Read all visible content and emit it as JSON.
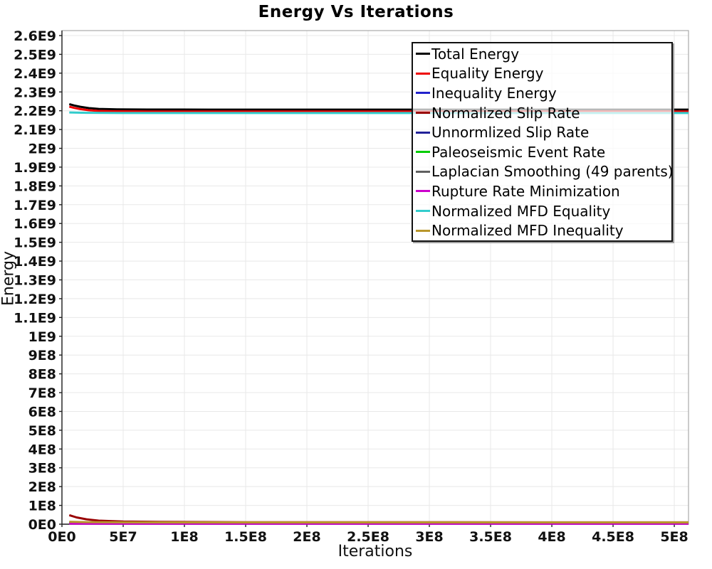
{
  "chart_data": {
    "type": "line",
    "title": "Energy Vs Iterations",
    "xlabel": "Iterations",
    "ylabel": "Energy",
    "xlim": [
      0,
      511600000
    ],
    "ylim": [
      0,
      2626500000
    ],
    "grid": true,
    "legend_position": "upper-right-inside",
    "x_ticks": {
      "values": [
        0,
        50000000,
        100000000,
        150000000,
        200000000,
        250000000,
        300000000,
        350000000,
        400000000,
        450000000,
        500000000
      ],
      "labels": [
        "0E0",
        "5E7",
        "1E8",
        "1.5E8",
        "2E8",
        "2.5E8",
        "3E8",
        "3.5E8",
        "4E8",
        "4.5E8",
        "5E8"
      ]
    },
    "y_ticks": {
      "values": [
        0,
        100000000,
        200000000,
        300000000,
        400000000,
        500000000,
        600000000,
        700000000,
        800000000,
        900000000,
        1000000000,
        1100000000,
        1200000000,
        1300000000,
        1400000000,
        1500000000,
        1600000000,
        1700000000,
        1800000000,
        1900000000,
        2000000000,
        2100000000,
        2200000000,
        2300000000,
        2400000000,
        2500000000,
        2600000000
      ],
      "labels": [
        "0E0",
        "1E8",
        "2E8",
        "3E8",
        "4E8",
        "5E8",
        "6E8",
        "7E8",
        "8E8",
        "9E8",
        "1E9",
        "1.1E9",
        "1.2E9",
        "1.3E9",
        "1.4E9",
        "1.5E9",
        "1.6E9",
        "1.7E9",
        "1.8E9",
        "1.9E9",
        "2E9",
        "2.1E9",
        "2.2E9",
        "2.3E9",
        "2.4E9",
        "2.5E9",
        "2.6E9"
      ],
      "axis_label": "Energy"
    },
    "style": {
      "grid_color": "#E8E8E8",
      "plot_border_color": "#AAAAAA",
      "axis_line_color": "#222222",
      "tick_label_color": "#111111",
      "legend_border_color": "#111111"
    },
    "series": [
      {
        "name": "Total Energy",
        "color": "#000000",
        "points": [
          [
            6000000,
            2235000000
          ],
          [
            10000000,
            2228000000
          ],
          [
            15000000,
            2221000000
          ],
          [
            22000000,
            2214000000
          ],
          [
            30000000,
            2210000000
          ],
          [
            45000000,
            2207500000
          ],
          [
            70000000,
            2206500000
          ],
          [
            120000000,
            2206000000
          ],
          [
            511600000,
            2206000000
          ]
        ]
      },
      {
        "name": "Equality Energy",
        "color": "#EE0000",
        "points": [
          [
            6000000,
            2222000000
          ],
          [
            10000000,
            2215000000
          ],
          [
            15000000,
            2208500000
          ],
          [
            22000000,
            2202500000
          ],
          [
            30000000,
            2199000000
          ],
          [
            45000000,
            2197000000
          ],
          [
            70000000,
            2196200000
          ],
          [
            120000000,
            2196000000
          ],
          [
            511600000,
            2196000000
          ]
        ]
      },
      {
        "name": "Inequality Energy",
        "color": "#2222CC",
        "points": [
          [
            6000000,
            4000000
          ],
          [
            511600000,
            4000000
          ]
        ]
      },
      {
        "name": "Normalized Slip Rate",
        "color": "#990000",
        "points": [
          [
            6000000,
            48000000
          ],
          [
            12000000,
            36000000
          ],
          [
            20000000,
            26000000
          ],
          [
            30000000,
            19000000
          ],
          [
            50000000,
            14500000
          ],
          [
            80000000,
            12000000
          ],
          [
            150000000,
            10500000
          ],
          [
            511600000,
            10000000
          ]
        ]
      },
      {
        "name": "Unnormlized Slip Rate",
        "color": "#222299",
        "points": [
          [
            6000000,
            5000000
          ],
          [
            511600000,
            5000000
          ]
        ]
      },
      {
        "name": "Paleoseismic Event Rate",
        "color": "#00CC00",
        "points": [
          [
            6000000,
            6500000
          ],
          [
            511600000,
            6500000
          ]
        ]
      },
      {
        "name": "Laplacian Smoothing (49 parents)",
        "color": "#606060",
        "points": [
          [
            6000000,
            8000000
          ],
          [
            511600000,
            8000000
          ]
        ]
      },
      {
        "name": "Rupture Rate Minimization",
        "color": "#CC00CC",
        "points": [
          [
            6000000,
            3000000
          ],
          [
            511600000,
            3000000
          ]
        ]
      },
      {
        "name": "Normalized MFD Equality",
        "color": "#33CCCC",
        "points": [
          [
            6000000,
            2191000000
          ],
          [
            20000000,
            2189000000
          ],
          [
            50000000,
            2188000000
          ],
          [
            511600000,
            2188000000
          ]
        ]
      },
      {
        "name": "Normalized MFD Inequality",
        "color": "#B8962B",
        "points": [
          [
            6000000,
            13000000
          ],
          [
            20000000,
            11000000
          ],
          [
            50000000,
            10000000
          ],
          [
            100000000,
            9500000
          ],
          [
            511600000,
            9500000
          ]
        ]
      }
    ]
  }
}
